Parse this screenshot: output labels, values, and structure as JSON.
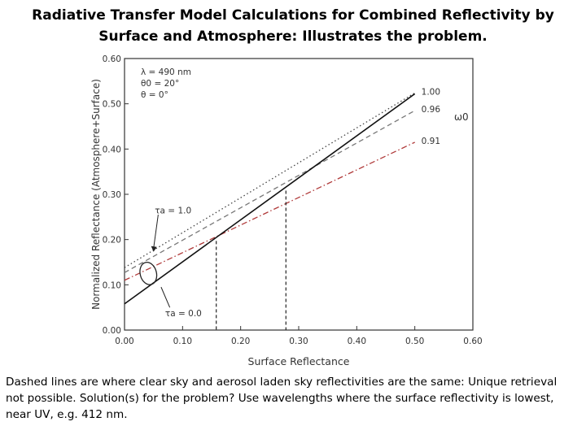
{
  "slide": {
    "title": "Radiative Transfer Model Calculations for Combined Reflectivity by Surface and Atmosphere: Illustrates the problem.",
    "caption": "Dashed lines are where clear sky and aerosol laden sky reflectivities are the same: Unique retrieval not possible. Solution(s) for the problem? Use wavelengths where the surface reflectivity is lowest, near UV, e.g. 412 nm."
  },
  "chart_data": {
    "type": "line",
    "xlabel": "Surface Reflectance",
    "ylabel": "Normalized Reflectance (Atmosphere+Surface)",
    "xlim": [
      0,
      0.6
    ],
    "ylim": [
      0,
      0.6
    ],
    "x_ticks": [
      "0.00",
      "0.10",
      "0.20",
      "0.30",
      "0.40",
      "0.50",
      "0.60"
    ],
    "y_ticks": [
      "0.00",
      "0.10",
      "0.20",
      "0.30",
      "0.40",
      "0.50",
      "0.60"
    ],
    "conditions": [
      "λ = 490 nm",
      "θ0 = 20°",
      "θ = 0°"
    ],
    "omega_label": "ω0",
    "series": [
      {
        "name": "1.00",
        "x": [
          0,
          0.5
        ],
        "y": [
          0.138,
          0.524
        ],
        "style": "dotted",
        "color": "#444444"
      },
      {
        "name": "0.96",
        "x": [
          0,
          0.5
        ],
        "y": [
          0.127,
          0.485
        ],
        "style": "dashed",
        "color": "#777777"
      },
      {
        "name": "0.91",
        "x": [
          0,
          0.5
        ],
        "y": [
          0.11,
          0.415
        ],
        "style": "dashdot",
        "color": "#b03a3a"
      },
      {
        "name": "τa = 0.0",
        "x": [
          0,
          0.5
        ],
        "y": [
          0.058,
          0.522
        ],
        "style": "solid",
        "color": "#111111"
      }
    ],
    "annotations": [
      {
        "label": "τa = 1.0",
        "x": 0.055,
        "y": 0.265
      },
      {
        "label": "τa = 0.0",
        "x": 0.07,
        "y": 0.038
      }
    ],
    "vertical_markers": [
      {
        "x": 0.158,
        "y": 0.197
      },
      {
        "x": 0.278,
        "y": 0.308
      }
    ],
    "grid": false
  }
}
